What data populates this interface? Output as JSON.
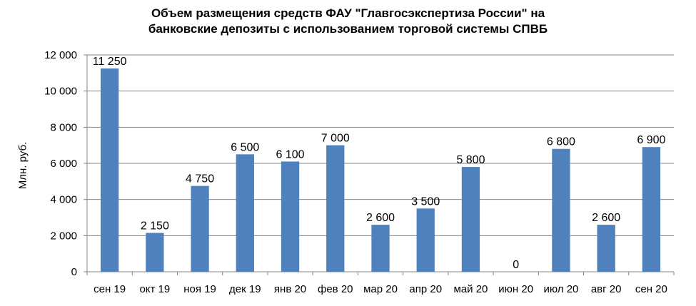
{
  "chart_data": {
    "type": "bar",
    "title_line1": "Объем размещения средств ФАУ \"Главгосэкспертиза России\" на",
    "title_line2": "банковские депозиты с использованием торговой системы СПВБ",
    "ylabel": "Млн. руб.",
    "xlabel": "",
    "ylim": [
      0,
      12000
    ],
    "yticks": [
      0,
      2000,
      4000,
      6000,
      8000,
      10000,
      12000
    ],
    "ytick_labels": [
      "0",
      "2 000",
      "4 000",
      "6 000",
      "8 000",
      "10 000",
      "12 000"
    ],
    "grid": true,
    "color": "#4f81bd",
    "categories": [
      "сен 19",
      "окт 19",
      "ноя 19",
      "дек 19",
      "янв 20",
      "фев 20",
      "мар 20",
      "апр 20",
      "май 20",
      "июн 20",
      "июл 20",
      "авг 20",
      "сен 20"
    ],
    "values": [
      11250,
      2150,
      4750,
      6500,
      6100,
      7000,
      2600,
      3500,
      5800,
      0,
      6800,
      2600,
      6900
    ],
    "value_labels": [
      "11 250",
      "2 150",
      "4 750",
      "6 500",
      "6 100",
      "7 000",
      "2 600",
      "3 500",
      "5 800",
      "0",
      "6 800",
      "2 600",
      "6 900"
    ]
  }
}
